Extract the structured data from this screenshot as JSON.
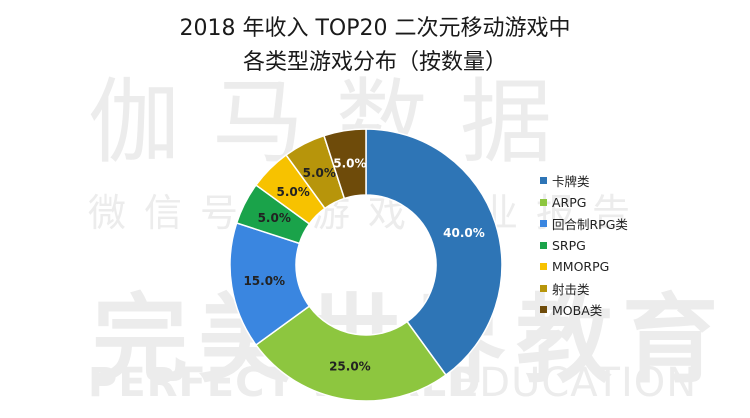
{
  "watermark": {
    "line1": "伽马数据",
    "line2": "微信号：游戏产业报告",
    "line3": "完美世界教育",
    "line4a": "PERFECT WORLD",
    "line4b": "EDUCATION"
  },
  "chart_data": {
    "type": "donut",
    "title": "2018 年收入 TOP20 二次元移动游戏中",
    "subtitle": "各类型游戏分布（按数量）",
    "categories": [
      "卡牌类",
      "ARPG",
      "回合制RPG类",
      "SRPG",
      "MMORPG",
      "射击类",
      "MOBA类"
    ],
    "values": [
      40.0,
      25.0,
      15.0,
      5.0,
      5.0,
      5.0,
      5.0
    ],
    "labels": [
      "40.0%",
      "25.0%",
      "15.0%",
      "5.0%",
      "5.0%",
      "5.0%",
      "5.0%"
    ],
    "colors": [
      "#2e75b6",
      "#8dc63f",
      "#3a86e0",
      "#1aa34a",
      "#f7c200",
      "#b7950b",
      "#6e4b0a"
    ],
    "label_colors": [
      "#ffffff",
      "#222222",
      "#222222",
      "#222222",
      "#222222",
      "#222222",
      "#ffffff"
    ],
    "legend_position": "right"
  }
}
